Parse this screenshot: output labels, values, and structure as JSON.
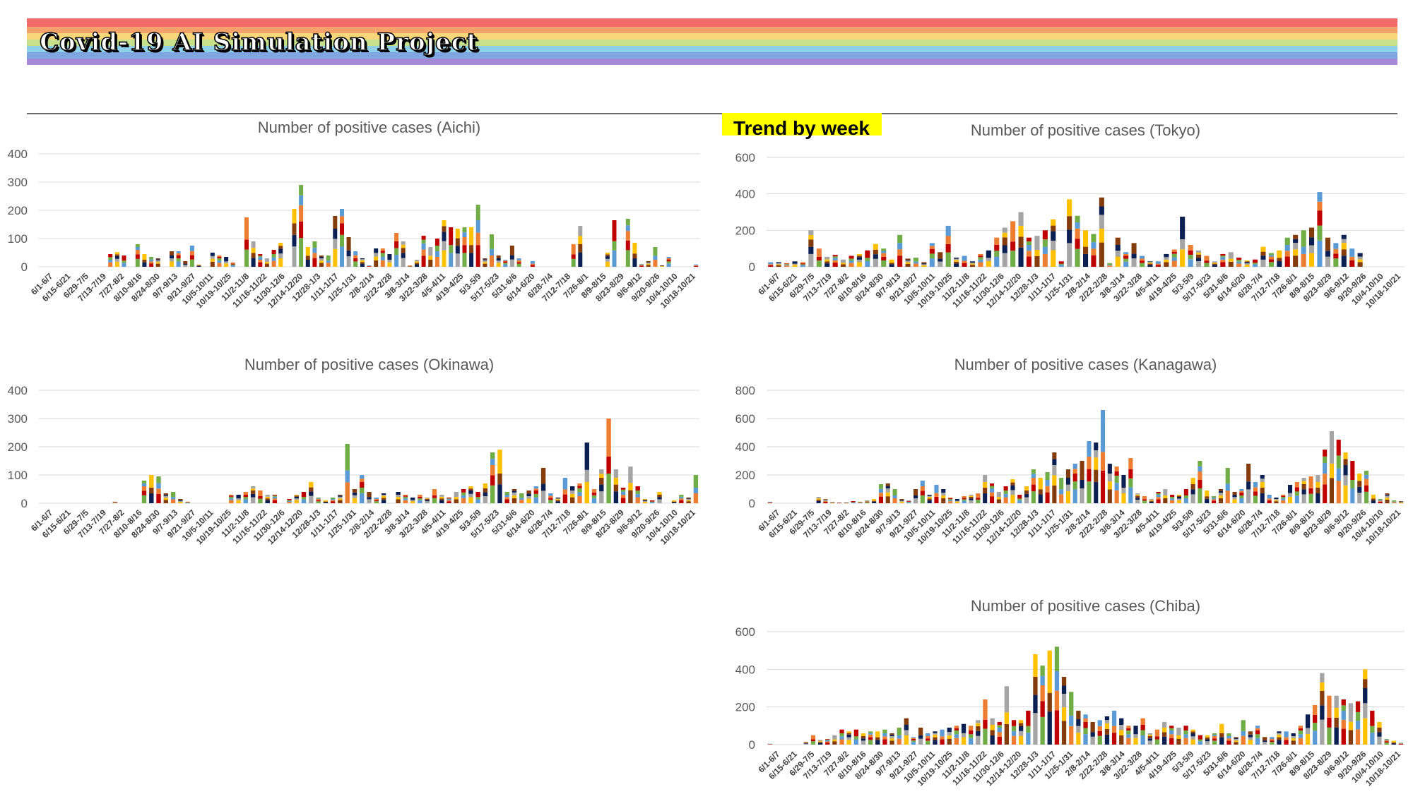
{
  "header": {
    "title": "Covid-19 AI Simulation Project",
    "stripe_colors": [
      "#f26b6b",
      "#f5a16b",
      "#f7d77a",
      "#c7e08c",
      "#8fd0e8",
      "#7fa6e0",
      "#a48ad6"
    ]
  },
  "badge": {
    "label": "Trend by week",
    "color": "#ffff00"
  },
  "series_colors": {
    "s1": "#c00000",
    "s2": "#843c0c",
    "s3": "#ed7d31",
    "s4": "#ffc000",
    "s5": "#5b9bd5",
    "s6": "#a5a5a5",
    "s7": "#70ad47",
    "s8": "#0b1f52"
  },
  "weeks": [
    "6/1-6/7",
    "6/15-6/21",
    "6/29-7/5",
    "7/13-7/19",
    "7/27-8/2",
    "8/10-8/16",
    "8/24-8/30",
    "9/7-9/13",
    "9/21-9/27",
    "10/5-10/11",
    "10/19-10/25",
    "11/2-11/8",
    "11/16-11/22",
    "11/30-12/6",
    "12/14-12/20",
    "12/28-1/3",
    "1/11-1/17",
    "1/25-1/31",
    "2/8-2/14",
    "2/22-2/28",
    "3/8-3/14",
    "3/22-3/28",
    "4/5-4/11",
    "4/19-4/25",
    "5/3-5/9",
    "5/17-5/23",
    "5/31-6/6",
    "6/14-6/20",
    "6/28-7/4",
    "7/12-7/18",
    "7/26-8/1",
    "8/9-8/15",
    "8/23-8/29",
    "9/6-9/12",
    "9/20-9/26",
    "10/4-10/10",
    "10/18-10/21"
  ],
  "chart_data": [
    {
      "id": "aichi",
      "type": "bar",
      "stacked": true,
      "title": "Number of positive cases (Aichi)",
      "ylim": [
        0,
        400
      ],
      "yticks": [
        0,
        100,
        200,
        300,
        400
      ],
      "totals": [
        0,
        0,
        0,
        0,
        0,
        0,
        0,
        0,
        0,
        0,
        45,
        52,
        40,
        0,
        80,
        45,
        35,
        30,
        0,
        55,
        55,
        20,
        75,
        8,
        0,
        50,
        40,
        35,
        15,
        0,
        175,
        90,
        45,
        30,
        60,
        85,
        0,
        205,
        290,
        70,
        90,
        40,
        40,
        180,
        205,
        105,
        55,
        30,
        5,
        65,
        65,
        45,
        120,
        90,
        5,
        25,
        110,
        70,
        100,
        165,
        140,
        135,
        140,
        140,
        220,
        30,
        115,
        40,
        25,
        75,
        30,
        0,
        20,
        0,
        0,
        0,
        0,
        0,
        80,
        145,
        0,
        0,
        0,
        50,
        165,
        0,
        170,
        85,
        10,
        20,
        70,
        5,
        35,
        0,
        0,
        0,
        8
      ]
    },
    {
      "id": "tokyo",
      "type": "bar",
      "stacked": true,
      "title": "Number of positive cases (Tokyo)",
      "ylim": [
        0,
        600
      ],
      "yticks": [
        0,
        200,
        400,
        600
      ],
      "totals": [
        25,
        25,
        20,
        30,
        25,
        200,
        100,
        55,
        65,
        40,
        60,
        70,
        90,
        125,
        100,
        40,
        175,
        45,
        50,
        25,
        130,
        80,
        225,
        50,
        60,
        30,
        70,
        90,
        160,
        215,
        250,
        300,
        160,
        170,
        200,
        260,
        30,
        370,
        280,
        200,
        180,
        380,
        20,
        160,
        80,
        130,
        60,
        30,
        30,
        70,
        95,
        275,
        120,
        90,
        60,
        30,
        70,
        80,
        50,
        35,
        40,
        110,
        75,
        90,
        160,
        175,
        200,
        215,
        410,
        160,
        130,
        175,
        100,
        75,
        0,
        0,
        0,
        0,
        0
      ]
    },
    {
      "id": "okinawa",
      "type": "bar",
      "stacked": true,
      "title": "Number of positive cases (Okinawa)",
      "ylim": [
        0,
        400
      ],
      "yticks": [
        0,
        100,
        200,
        300,
        400
      ],
      "totals": [
        0,
        0,
        0,
        0,
        0,
        0,
        0,
        0,
        0,
        0,
        5,
        0,
        0,
        0,
        80,
        100,
        95,
        35,
        40,
        15,
        5,
        0,
        0,
        0,
        0,
        0,
        30,
        30,
        40,
        60,
        45,
        30,
        30,
        0,
        15,
        30,
        40,
        75,
        20,
        10,
        20,
        30,
        210,
        50,
        100,
        40,
        20,
        35,
        0,
        40,
        30,
        20,
        30,
        20,
        50,
        30,
        20,
        40,
        50,
        60,
        40,
        70,
        180,
        190,
        40,
        50,
        35,
        45,
        60,
        125,
        35,
        20,
        90,
        60,
        70,
        215,
        50,
        120,
        300,
        120,
        55,
        130,
        60,
        15,
        10,
        40,
        0,
        10,
        30,
        20,
        100
      ]
    },
    {
      "id": "kanagawa",
      "type": "bar",
      "stacked": true,
      "title": "Number of positive cases (Kanagawa)",
      "ylim": [
        0,
        800
      ],
      "yticks": [
        0,
        200,
        400,
        600,
        800
      ],
      "totals": [
        10,
        0,
        0,
        0,
        0,
        0,
        0,
        45,
        30,
        10,
        5,
        5,
        15,
        10,
        20,
        30,
        135,
        140,
        100,
        30,
        20,
        100,
        160,
        60,
        130,
        100,
        40,
        30,
        50,
        60,
        70,
        200,
        140,
        80,
        120,
        170,
        60,
        120,
        240,
        180,
        220,
        360,
        180,
        240,
        280,
        300,
        440,
        430,
        660,
        280,
        260,
        200,
        320,
        70,
        50,
        30,
        80,
        100,
        60,
        60,
        100,
        180,
        300,
        90,
        50,
        100,
        250,
        80,
        100,
        280,
        150,
        200,
        60,
        40,
        60,
        130,
        150,
        180,
        190,
        200,
        380,
        510,
        450,
        360,
        300,
        210,
        230,
        60,
        30,
        70,
        20,
        15
      ]
    },
    {
      "id": "chiba",
      "type": "bar",
      "stacked": true,
      "title": "Number of positive cases (Chiba)",
      "ylim": [
        0,
        600
      ],
      "yticks": [
        0,
        200,
        400,
        600
      ],
      "totals": [
        5,
        0,
        0,
        0,
        0,
        15,
        50,
        25,
        30,
        50,
        80,
        70,
        80,
        60,
        70,
        70,
        80,
        60,
        90,
        140,
        40,
        90,
        60,
        70,
        80,
        90,
        100,
        110,
        100,
        130,
        240,
        140,
        120,
        310,
        130,
        130,
        180,
        480,
        420,
        500,
        520,
        360,
        280,
        180,
        160,
        120,
        130,
        150,
        180,
        140,
        100,
        100,
        140,
        60,
        80,
        120,
        100,
        90,
        100,
        80,
        50,
        50,
        60,
        110,
        60,
        40,
        130,
        70,
        100,
        40,
        40,
        70,
        70,
        60,
        100,
        160,
        210,
        380,
        260,
        260,
        240,
        220,
        230,
        400,
        180,
        120,
        30,
        20,
        10
      ]
    }
  ]
}
